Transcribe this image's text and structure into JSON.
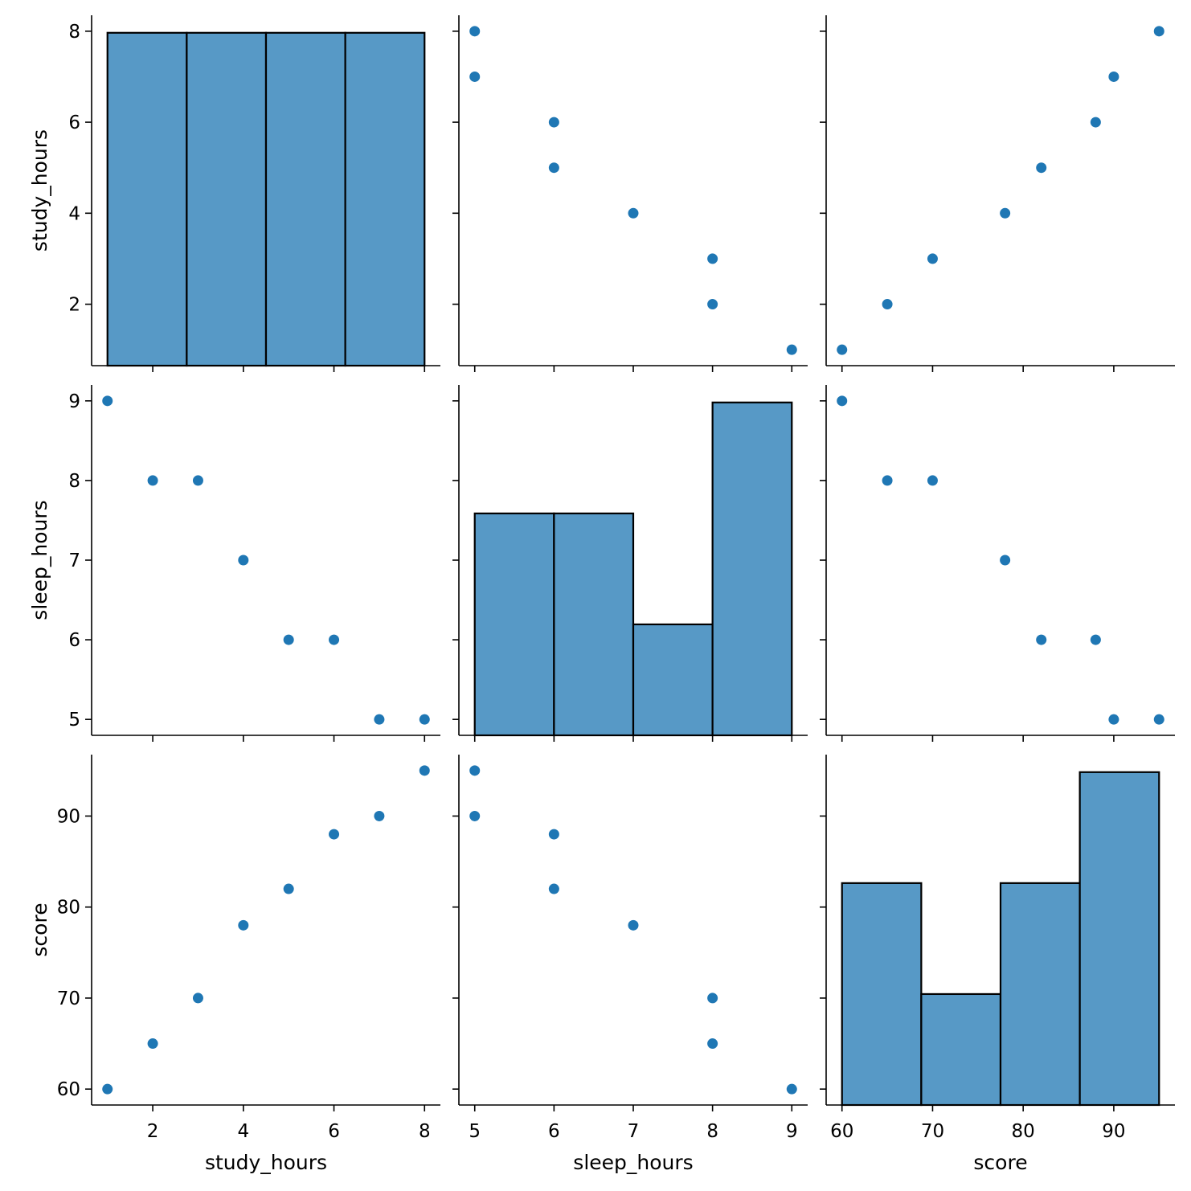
{
  "chart_data": {
    "type": "scatter",
    "kind": "pairplot",
    "grid": false,
    "colors": {
      "point": "#1f77b4",
      "bar": "#5799c6",
      "edge": "#000000"
    },
    "variables": [
      {
        "name": "study_hours",
        "range": [
          0.65,
          8.35
        ],
        "ticks": [
          2,
          4,
          6,
          8
        ],
        "yticks": [
          2,
          4,
          6,
          8
        ]
      },
      {
        "name": "sleep_hours",
        "range": [
          4.8,
          9.2
        ],
        "ticks": [
          5,
          6,
          7,
          8,
          9
        ],
        "yticks": [
          5,
          6,
          7,
          8,
          9
        ]
      },
      {
        "name": "score",
        "range": [
          58.25,
          96.75
        ],
        "ticks": [
          60,
          70,
          80,
          90
        ],
        "yticks": [
          60,
          70,
          80,
          90
        ]
      }
    ],
    "observations": {
      "study_hours": [
        1,
        2,
        3,
        4,
        5,
        6,
        7,
        8
      ],
      "sleep_hours": [
        9,
        8,
        8,
        7,
        6,
        6,
        5,
        5
      ],
      "score": [
        60,
        65,
        70,
        78,
        82,
        88,
        90,
        95
      ]
    },
    "histograms": {
      "study_hours": {
        "edges": [
          1,
          2.75,
          4.5,
          6.25,
          8
        ],
        "counts": [
          2,
          2,
          2,
          2
        ]
      },
      "sleep_hours": {
        "edges": [
          5,
          6,
          7,
          8,
          9
        ],
        "counts": [
          2,
          2,
          1,
          3
        ]
      },
      "score": {
        "edges": [
          60,
          68.75,
          77.5,
          86.25,
          95
        ],
        "counts": [
          2,
          1,
          2,
          3
        ]
      }
    },
    "x_axis_labels": [
      "study_hours",
      "sleep_hours",
      "score"
    ],
    "y_axis_labels": [
      "study_hours",
      "sleep_hours",
      "score"
    ]
  }
}
